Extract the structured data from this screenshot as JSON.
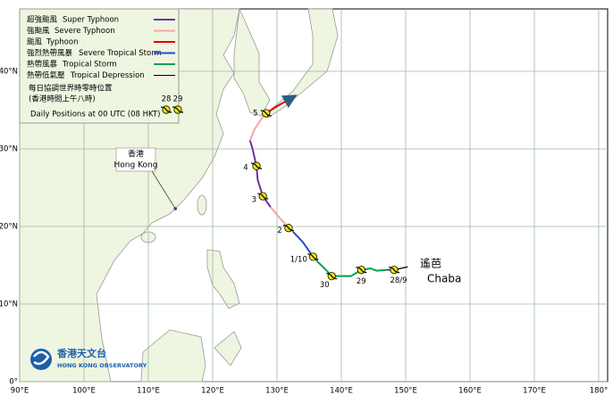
{
  "map": {
    "lon_ticks": [
      {
        "value": 90,
        "label": "90°E"
      },
      {
        "value": 100,
        "label": "100°E"
      },
      {
        "value": 110,
        "label": "110°E"
      },
      {
        "value": 120,
        "label": "120°E"
      },
      {
        "value": 130,
        "label": "130°E"
      },
      {
        "value": 140,
        "label": "140°E"
      },
      {
        "value": 150,
        "label": "150°E"
      },
      {
        "value": 160,
        "label": "160°E"
      },
      {
        "value": 170,
        "label": "170°E"
      },
      {
        "value": 180,
        "label": "180°"
      }
    ],
    "lat_ticks": [
      {
        "value": 0,
        "label": "0°"
      },
      {
        "value": 10,
        "label": "10°N"
      },
      {
        "value": 20,
        "label": "20°N"
      },
      {
        "value": 30,
        "label": "30°N"
      },
      {
        "value": 40,
        "label": "40°N"
      }
    ]
  },
  "legend": {
    "items": [
      {
        "zh": "超強颱風",
        "en": "Super Typhoon",
        "color": "#7030a0"
      },
      {
        "zh": "強颱風",
        "en": "Severe Typhoon",
        "color": "#f4a6a6"
      },
      {
        "zh": "颱風",
        "en": "Typhoon",
        "color": "#e00000"
      },
      {
        "zh": "強烈熱帶風暴",
        "en": "Severe Tropical Storm",
        "color": "#1f4fd0"
      },
      {
        "zh": "熱帶風暴",
        "en": "Tropical Storm",
        "color": "#00a050"
      },
      {
        "zh": "熱帶低氣壓",
        "en": "Tropical Depression",
        "color": "#000000"
      }
    ],
    "daily_zh_1": "每日協調世界時零時位置",
    "daily_zh_2": "(香港時間上午八時)",
    "daily_en": "Daily Positions at 00 UTC (08 HKT)",
    "daily_dates": [
      "28",
      "29"
    ]
  },
  "hong_kong": {
    "zh": "香港",
    "en": "Hong Kong",
    "lon": 114.2,
    "lat": 22.3
  },
  "storm": {
    "zh": "遙芭",
    "en": "Chaba"
  },
  "track": [
    {
      "color": "#000000",
      "lon": [
        150.3,
        148.2,
        147.0
      ],
      "lat": [
        14.8,
        14.4,
        14.4
      ]
    },
    {
      "color": "#00a050",
      "lon": [
        147.0,
        145.5,
        144.5,
        143.1,
        141.5,
        139.5,
        138.5,
        137.5,
        136.5,
        135.6
      ],
      "lat": [
        14.4,
        14.3,
        14.6,
        14.4,
        13.6,
        13.6,
        13.6,
        14.5,
        15.3,
        16.1
      ]
    },
    {
      "color": "#1f4fd0",
      "lon": [
        135.6,
        134.0,
        132.5
      ],
      "lat": [
        16.1,
        18.0,
        19.3
      ]
    },
    {
      "color": "#f4a6a6",
      "lon": [
        132.5,
        131.8,
        130.0,
        129.0
      ],
      "lat": [
        19.3,
        19.8,
        21.5,
        22.5
      ]
    },
    {
      "color": "#7030a0",
      "lon": [
        129.0,
        127.8,
        127.0,
        126.8,
        126.2,
        125.8
      ],
      "lat": [
        22.5,
        23.9,
        26.0,
        27.8,
        30.0,
        31.1
      ]
    },
    {
      "color": "#f4a6a6",
      "lon": [
        125.8,
        126.5,
        127.5,
        128.3
      ],
      "lat": [
        31.1,
        32.5,
        33.8,
        34.6
      ]
    },
    {
      "color": "#e00000",
      "lon": [
        128.3,
        130.0,
        131.7
      ],
      "lat": [
        34.6,
        35.5,
        36.3
      ]
    }
  ],
  "daily_positions": [
    {
      "label": "28/9",
      "lon": 148.2,
      "lat": 14.4
    },
    {
      "label": "29",
      "lon": 143.1,
      "lat": 14.4
    },
    {
      "label": "30",
      "lon": 138.5,
      "lat": 13.6
    },
    {
      "label": "1/10",
      "lon": 135.6,
      "lat": 16.1
    },
    {
      "label": "2",
      "lon": 131.8,
      "lat": 19.8
    },
    {
      "label": "3",
      "lon": 127.8,
      "lat": 23.9
    },
    {
      "label": "4",
      "lon": 126.8,
      "lat": 27.8
    },
    {
      "label": "5",
      "lon": 128.3,
      "lat": 34.6
    }
  ],
  "logo": {
    "zh": "香港天文台",
    "en": "HONG KONG OBSERVATORY"
  }
}
